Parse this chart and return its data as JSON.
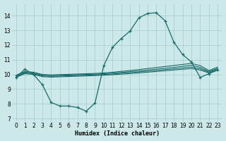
{
  "xlabel": "Humidex (Indice chaleur)",
  "bg_color": "#cce8e8",
  "grid_color": "#aacece",
  "line_color": "#1a6b6b",
  "xlim": [
    -0.5,
    23.5
  ],
  "ylim": [
    6.8,
    14.8
  ],
  "yticks": [
    7,
    8,
    9,
    10,
    11,
    12,
    13,
    14
  ],
  "xticks": [
    0,
    1,
    2,
    3,
    4,
    5,
    6,
    7,
    8,
    9,
    10,
    11,
    12,
    13,
    14,
    15,
    16,
    17,
    18,
    19,
    20,
    21,
    22,
    23
  ],
  "curve_x": [
    0,
    1,
    2,
    3,
    4,
    5,
    6,
    7,
    8,
    9,
    10,
    11,
    12,
    13,
    14,
    15,
    16,
    17,
    18,
    19,
    20,
    21,
    22,
    23
  ],
  "curve_y": [
    9.8,
    10.35,
    10.0,
    9.3,
    8.1,
    7.85,
    7.85,
    7.75,
    7.5,
    8.05,
    10.6,
    11.85,
    12.45,
    12.95,
    13.85,
    14.15,
    14.2,
    13.65,
    12.2,
    11.35,
    10.85,
    9.8,
    10.05,
    10.3
  ],
  "flat1_y": [
    9.8,
    10.05,
    10.0,
    9.85,
    9.82,
    9.84,
    9.86,
    9.88,
    9.9,
    9.92,
    9.95,
    9.98,
    10.02,
    10.06,
    10.1,
    10.15,
    10.2,
    10.25,
    10.3,
    10.35,
    10.4,
    10.3,
    10.1,
    10.3
  ],
  "flat2_y": [
    9.85,
    10.1,
    10.05,
    9.9,
    9.87,
    9.89,
    9.91,
    9.93,
    9.95,
    9.97,
    10.0,
    10.03,
    10.08,
    10.12,
    10.17,
    10.22,
    10.27,
    10.33,
    10.38,
    10.44,
    10.5,
    10.38,
    10.15,
    10.35
  ],
  "flat3_y": [
    9.9,
    10.15,
    10.1,
    9.95,
    9.92,
    9.94,
    9.96,
    9.98,
    10.0,
    10.02,
    10.05,
    10.09,
    10.14,
    10.19,
    10.24,
    10.3,
    10.36,
    10.42,
    10.48,
    10.55,
    10.62,
    10.48,
    10.2,
    10.42
  ],
  "flat4_y": [
    9.95,
    10.2,
    10.15,
    10.0,
    9.97,
    9.99,
    10.01,
    10.03,
    10.05,
    10.07,
    10.1,
    10.15,
    10.21,
    10.27,
    10.33,
    10.4,
    10.47,
    10.54,
    10.61,
    10.68,
    10.75,
    10.6,
    10.27,
    10.5
  ]
}
